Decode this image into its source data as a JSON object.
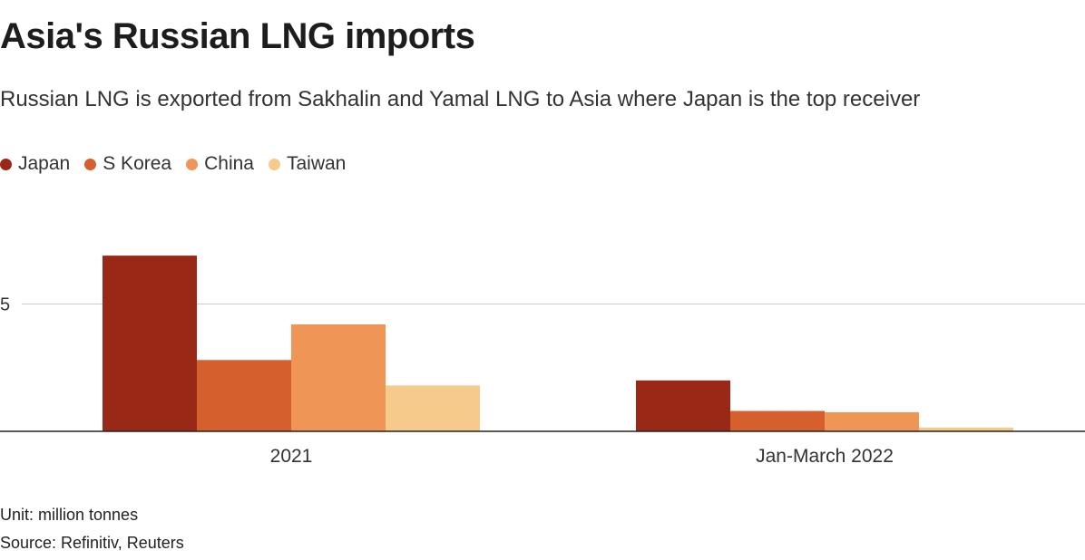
{
  "title": "Asia's Russian LNG imports",
  "subtitle": "Russian LNG is exported from Sakhalin and Yamal LNG to Asia where Japan is the top receiver",
  "unit": "Unit: million tonnes",
  "source": "Source: Refinitiv, Reuters",
  "colors": {
    "Japan": "#9a2817",
    "S Korea": "#d5602e",
    "China": "#ef9556",
    "Taiwan": "#f6ca8a",
    "grid": "#cccccc",
    "axis": "#222222"
  },
  "chart_data": {
    "type": "bar",
    "title": "Asia's Russian LNG imports",
    "subtitle": "Russian LNG is exported from Sakhalin and Yamal LNG to Asia where Japan is the top receiver",
    "categories": [
      "2021",
      "Jan-March 2022"
    ],
    "series": [
      {
        "name": "Japan",
        "values": [
          6.9,
          2.0
        ]
      },
      {
        "name": "S Korea",
        "values": [
          2.8,
          0.8
        ]
      },
      {
        "name": "China",
        "values": [
          4.2,
          0.75
        ]
      },
      {
        "name": "Taiwan",
        "values": [
          1.8,
          0.15
        ]
      }
    ],
    "yticks": [
      5
    ],
    "ylim": [
      0,
      8
    ],
    "grid": true,
    "legend": "top-left",
    "xlabel": "",
    "ylabel": ""
  }
}
